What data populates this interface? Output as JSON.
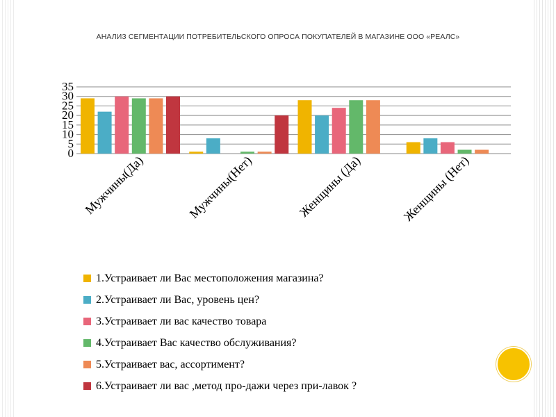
{
  "title": "АНАЛИЗ СЕГМЕНТАЦИИ  ПОТРЕБИТЕЛЬСКОГО ОПРОСА ПОКУПАТЕЛЕЙ В МАГАЗИНЕ  ООО «РЕАЛС»",
  "colors": {
    "accent": "#f7c200",
    "series": [
      "#f0b400",
      "#4badc6",
      "#e8667a",
      "#63b86a",
      "#ee8a55",
      "#c0363f"
    ]
  },
  "chart_data": {
    "type": "bar",
    "categories": [
      "Мужчины(Да)",
      "Мужчины(Нет)",
      "Женщины (Да)",
      "Женщины (Нет)"
    ],
    "series": [
      {
        "name": "1.Устраивает ли Вас местоположения магазина?",
        "values": [
          29,
          1,
          28,
          6
        ]
      },
      {
        "name": "2.Устраивает ли Вас, уровень цен?",
        "values": [
          22,
          8,
          20,
          8
        ]
      },
      {
        "name": "3.Устраивает ли вас качество товара",
        "values": [
          30,
          0,
          24,
          6
        ]
      },
      {
        "name": "4.Устраивает Вас качество обслуживания?",
        "values": [
          29,
          1,
          28,
          2
        ]
      },
      {
        "name": "5.Устраивает вас, ассортимент?",
        "values": [
          29,
          1,
          28,
          2
        ]
      },
      {
        "name": "6.Устраивает ли вас ,метод про-дажи через при-лавок ?",
        "values": [
          30,
          20,
          null,
          null
        ]
      }
    ],
    "yticks": [
      "35",
      "30",
      "25",
      "20",
      "15",
      "10",
      "5",
      "0"
    ],
    "ylim": [
      0,
      35
    ],
    "grid": true,
    "legend_position": "bottom"
  }
}
